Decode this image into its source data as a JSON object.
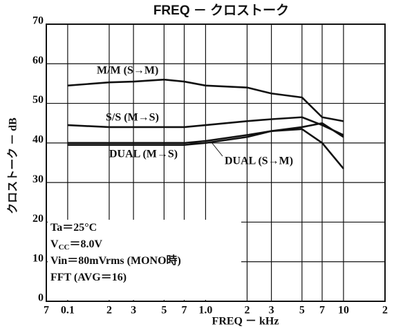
{
  "chart_data": {
    "type": "line",
    "title": "FREQ － クロストーク",
    "x_label": "FREQ － kHz",
    "y_label": "クロストーク － dB",
    "log_x": true,
    "grid": true,
    "x": [
      0.1,
      0.2,
      0.3,
      0.5,
      0.7,
      1,
      2,
      3,
      5,
      7,
      10
    ],
    "series": [
      {
        "name": "M/M (S→M)",
        "color": "#111111",
        "values": [
          54.5,
          55.3,
          55.5,
          56,
          55.5,
          54.5,
          54,
          52.5,
          51.5,
          46.5,
          45.5
        ]
      },
      {
        "name": "S/S (M→S)",
        "color": "#111111",
        "values": [
          44.5,
          44,
          44,
          44,
          44,
          44.5,
          45.5,
          46,
          46.5,
          44.5,
          42
        ]
      },
      {
        "name": "DUAL (M→S)",
        "color": "#111111",
        "values": [
          40,
          40,
          40,
          40,
          40,
          40.5,
          42,
          43,
          44,
          45,
          41.5
        ]
      },
      {
        "name": "DUAL (S→M)",
        "color": "#111111",
        "values": [
          39.5,
          39.5,
          39.5,
          39.5,
          39.5,
          40,
          41.5,
          43,
          43.5,
          40,
          33.5
        ]
      }
    ],
    "xlim": [
      0.07,
      20
    ],
    "ylim": [
      0,
      70
    ],
    "xticks": [
      {
        "value": 0.07,
        "label": "7"
      },
      0.1,
      {
        "value": 0.2,
        "label": "2"
      },
      {
        "value": 0.3,
        "label": "3"
      },
      {
        "value": 0.5,
        "label": "5"
      },
      {
        "value": 0.7,
        "label": "7"
      },
      {
        "value": 1,
        "label": "1.0"
      },
      {
        "value": 2,
        "label": "2"
      },
      {
        "value": 3,
        "label": "3"
      },
      {
        "value": 5,
        "label": "5"
      },
      {
        "value": 7,
        "label": "7"
      },
      10,
      {
        "value": 20,
        "label": "2"
      }
    ],
    "yticks": [
      0,
      10,
      20,
      30,
      40,
      50,
      60,
      70
    ],
    "conditions": [
      [
        "Ta＝25°C"
      ],
      [
        "V",
        "CC",
        "＝8.0V"
      ],
      [
        "Vin＝80mVrms (MONO時)"
      ],
      [
        "FFT (AVG＝16)"
      ]
    ]
  }
}
